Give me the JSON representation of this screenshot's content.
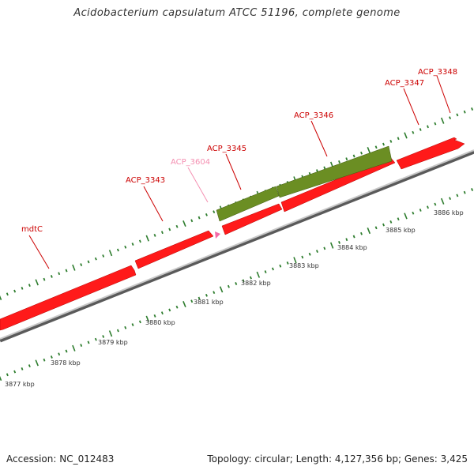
{
  "title": "Acidobacterium capsulatum ATCC 51196, complete genome",
  "footer": {
    "accession": "Accession: NC_012483",
    "summary": "Topology: circular; Length: 4,127,356 bp; Genes: 3,425"
  },
  "colors": {
    "gene": "#ff1a1a",
    "gene_highlight": "#f46aa8",
    "rna": "#6b8e23",
    "ticks": "#2e7d2e",
    "backbone": "#8a8a8a",
    "gene_label": "#cc0000",
    "highlight_label": "#f48fb1"
  },
  "scale_labels": [
    "3877 kbp",
    "3878 kbp",
    "3879 kbp",
    "3880 kbp",
    "3881 kbp",
    "3882 kbp",
    "3883 kbp",
    "3884 kbp",
    "3885 kbp",
    "3886 kbp"
  ],
  "gene_labels": [
    {
      "text": "mdtC",
      "highlight": false
    },
    {
      "text": "ACP_3343",
      "highlight": false
    },
    {
      "text": "ACP_3604",
      "highlight": true
    },
    {
      "text": "ACP_3345",
      "highlight": false
    },
    {
      "text": "ACP_3346",
      "highlight": false
    },
    {
      "text": "ACP_3347",
      "highlight": false
    },
    {
      "text": "ACP_3348",
      "highlight": false
    }
  ]
}
